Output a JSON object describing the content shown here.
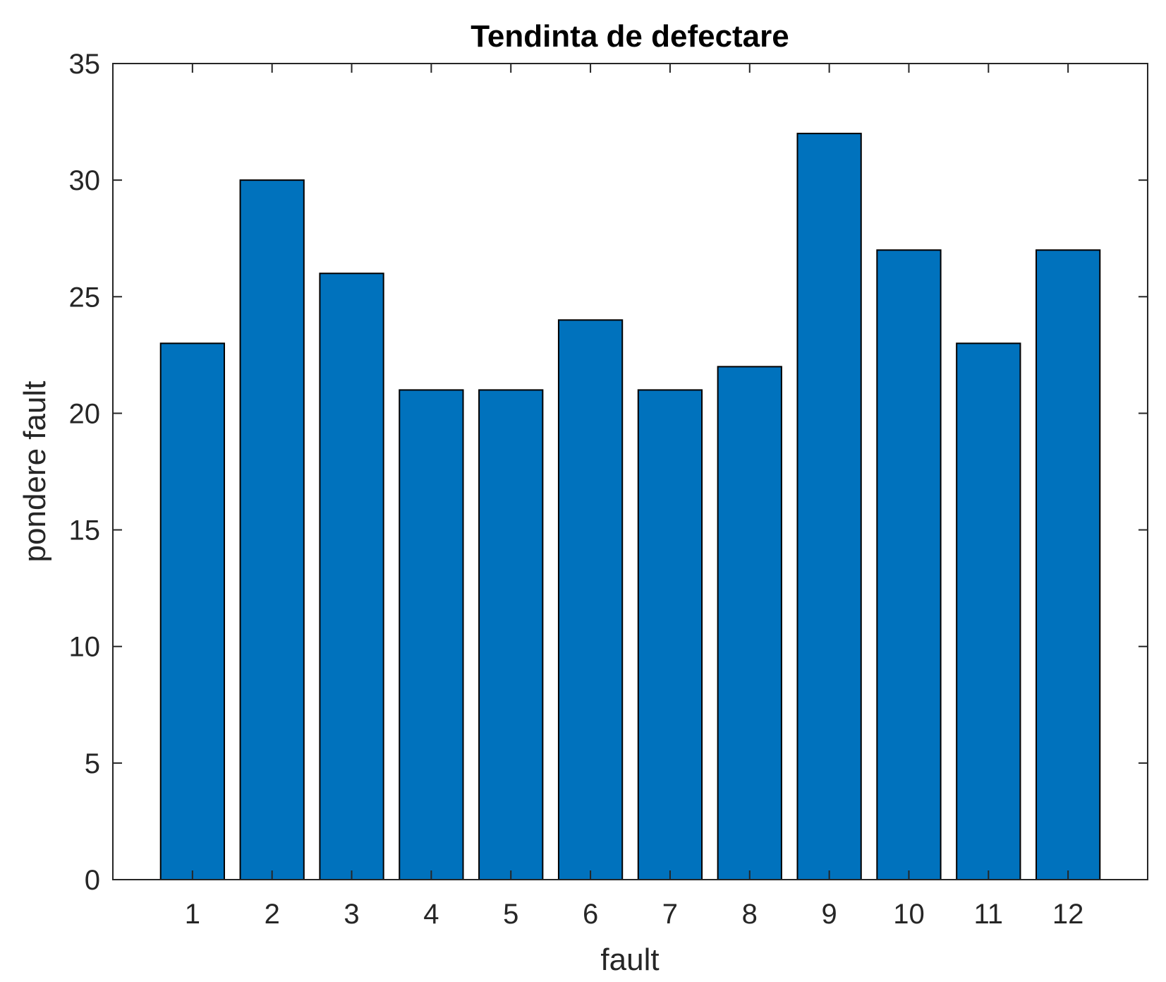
{
  "chart_data": {
    "type": "bar",
    "title": "Tendinta de defectare",
    "xlabel": "fault",
    "ylabel": "pondere fault",
    "categories": [
      "1",
      "2",
      "3",
      "4",
      "5",
      "6",
      "7",
      "8",
      "9",
      "10",
      "11",
      "12"
    ],
    "values": [
      23,
      30,
      26,
      21,
      21,
      24,
      21,
      22,
      32,
      27,
      23,
      27
    ],
    "ylim": [
      0,
      35
    ],
    "yticks": [
      0,
      5,
      10,
      15,
      20,
      25,
      30,
      35
    ],
    "grid": false,
    "legend": null,
    "colors": {
      "bar_fill": "#0072bd",
      "bar_edge": "#000000",
      "axis": "#262626"
    }
  }
}
